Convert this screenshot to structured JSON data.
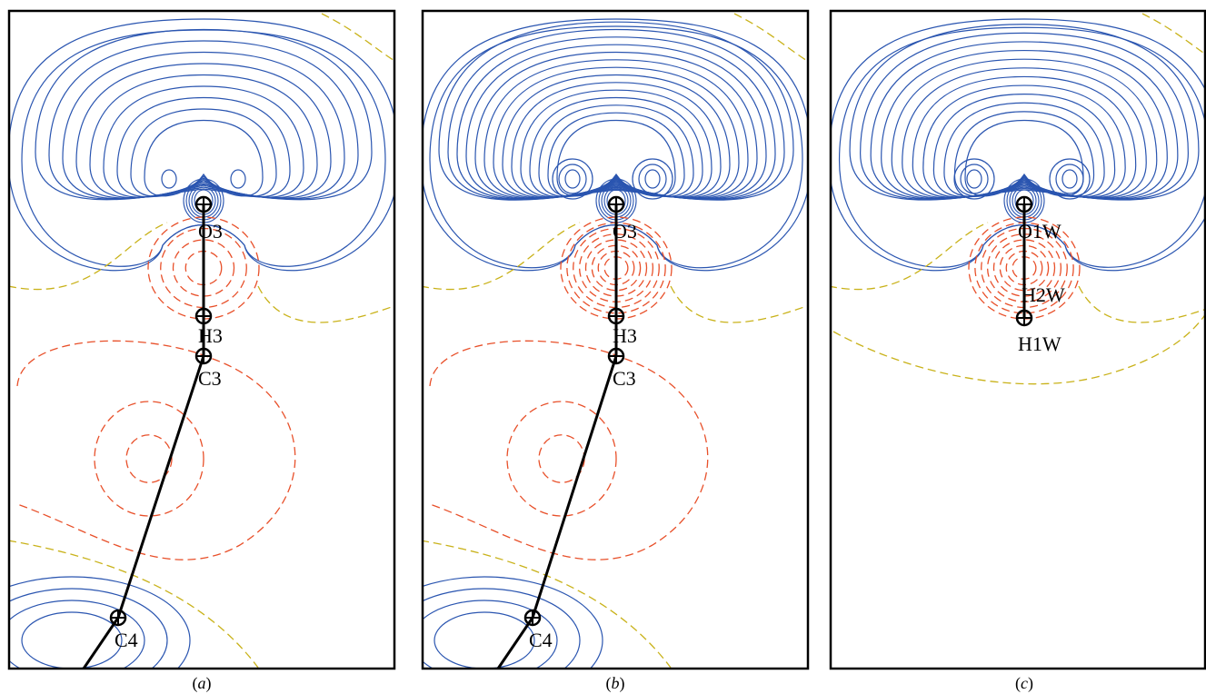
{
  "colors": {
    "positive": "#2a55b0",
    "negative": "#e8502a",
    "zero": "#c9b21a",
    "bond": "#000000",
    "frame": "#000000"
  },
  "panels": [
    {
      "id": "a",
      "caption": "a",
      "atoms": [
        "O3",
        "H3",
        "C3",
        "C4"
      ],
      "negative_minimum_levels": 2
    },
    {
      "id": "b",
      "caption": "b",
      "atoms": [
        "O3",
        "H3",
        "C3",
        "C4"
      ],
      "negative_minimum_levels": 2
    },
    {
      "id": "c",
      "caption": "c",
      "atoms": [
        "O1W",
        "H2W",
        "H1W"
      ],
      "negative_minimum_levels": 0
    }
  ]
}
